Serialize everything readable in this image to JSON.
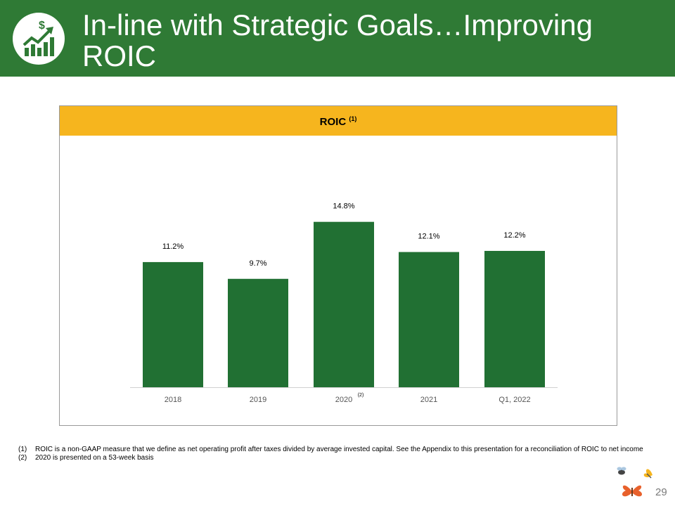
{
  "header": {
    "title": "In-line with Strategic Goals…Improving ROIC",
    "icon": "growth-chart-dollar-icon",
    "bg_color": "#2f7a35"
  },
  "panel": {
    "heading": "ROIC",
    "heading_note": "(1)",
    "heading_color": "#f6b51e"
  },
  "chart_data": {
    "type": "bar",
    "title": "ROIC (1)",
    "categories": [
      "2018",
      "2019",
      "2020",
      "2021",
      "Q1, 2022"
    ],
    "category_notes": [
      "",
      "",
      "(2)",
      "",
      ""
    ],
    "values": [
      11.2,
      9.7,
      14.8,
      12.1,
      12.2
    ],
    "data_labels": [
      "11.2%",
      "9.7%",
      "14.8%",
      "12.1%",
      "12.2%"
    ],
    "unit": "%",
    "xlabel": "",
    "ylabel": "",
    "ylim": [
      0,
      20
    ],
    "grid": false,
    "bar_color": "#217033"
  },
  "footnotes": [
    {
      "num": "(1)",
      "text": "ROIC is a non-GAAP measure that we define as net operating profit after taxes divided by average invested capital. See the Appendix to this presentation for a reconciliation of ROIC to net income"
    },
    {
      "num": "(2)",
      "text": "2020 is presented on a 53-week basis"
    }
  ],
  "page_number": "29"
}
